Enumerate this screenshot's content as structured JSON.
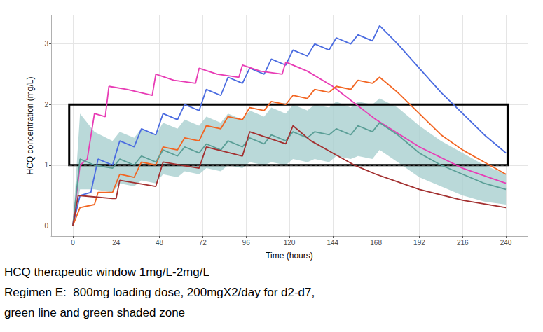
{
  "chart_data": {
    "type": "line",
    "x_label": "Time (hours)",
    "y_label": "HCQ concentration (mg/L)",
    "xlim": [
      -12,
      252
    ],
    "xticks": [
      0,
      24,
      48,
      72,
      96,
      120,
      144,
      168,
      192,
      216,
      240
    ],
    "ylim": [
      -0.17,
      3.47
    ],
    "yticks": [
      0,
      1,
      2,
      3
    ],
    "grid": true,
    "window": {
      "color": "#000000",
      "xlim": [
        -2,
        241
      ],
      "ylim": [
        1,
        2
      ]
    },
    "notes": [
      "HCQ therapeutic window 1mg/L-2mg/L",
      "Regimen E:  800mg loading dose, 200mgX2/day for d2-d7,",
      "green line and green shaded zone"
    ],
    "series": [
      {
        "type": "band",
        "color": "#a9cfcf",
        "x": [
          0,
          4,
          12,
          22,
          26,
          34,
          38,
          46,
          50,
          58,
          62,
          70,
          74,
          82,
          86,
          94,
          98,
          106,
          110,
          118,
          122,
          130,
          134,
          142,
          146,
          154,
          158,
          166,
          170,
          180,
          192,
          204,
          216,
          228,
          240
        ],
        "upper": [
          0,
          1.85,
          1.55,
          1.4,
          1.55,
          1.45,
          1.6,
          1.5,
          1.7,
          1.6,
          1.75,
          1.65,
          1.8,
          1.7,
          1.85,
          1.75,
          1.9,
          1.8,
          1.95,
          1.85,
          2.0,
          1.9,
          2.0,
          1.95,
          2.05,
          1.95,
          2.05,
          2.0,
          2.1,
          1.95,
          1.65,
          1.4,
          1.2,
          1.0,
          0.85
        ],
        "lower": [
          0,
          0.6,
          0.6,
          0.55,
          0.7,
          0.65,
          0.75,
          0.7,
          0.85,
          0.8,
          0.9,
          0.85,
          0.95,
          0.9,
          1.0,
          0.95,
          1.05,
          1.0,
          1.05,
          1.0,
          1.1,
          1.05,
          1.1,
          1.05,
          1.15,
          1.1,
          1.15,
          1.1,
          1.25,
          1.05,
          0.8,
          0.65,
          0.5,
          0.4,
          0.35
        ]
      },
      {
        "type": "line",
        "color": "#4a6be0",
        "x": [
          0,
          4,
          10,
          14,
          22,
          26,
          34,
          38,
          46,
          50,
          58,
          62,
          70,
          74,
          82,
          86,
          94,
          98,
          106,
          110,
          118,
          122,
          130,
          134,
          142,
          146,
          154,
          158,
          166,
          170,
          180,
          192,
          204,
          216,
          228,
          240
        ],
        "values": [
          0,
          0.5,
          0.55,
          1.1,
          1.0,
          1.4,
          1.3,
          1.6,
          1.5,
          1.85,
          1.75,
          2.0,
          1.9,
          2.25,
          2.15,
          2.45,
          2.35,
          2.6,
          2.5,
          2.75,
          2.65,
          2.9,
          2.8,
          3.0,
          2.9,
          3.1,
          3.0,
          3.15,
          3.05,
          3.3,
          3.0,
          2.6,
          2.2,
          1.85,
          1.5,
          1.2
        ]
      },
      {
        "type": "line",
        "color": "#e83cb5",
        "x": [
          0,
          4,
          8,
          12,
          18,
          20,
          30,
          44,
          46,
          56,
          68,
          70,
          80,
          92,
          94,
          104,
          116,
          118,
          130,
          144,
          168,
          192,
          216,
          240
        ],
        "values": [
          0,
          1.0,
          1.1,
          1.85,
          1.8,
          2.3,
          2.25,
          2.15,
          2.5,
          2.4,
          2.35,
          2.6,
          2.5,
          2.45,
          2.65,
          2.55,
          2.5,
          2.7,
          2.55,
          2.3,
          1.75,
          1.3,
          0.95,
          0.7
        ]
      },
      {
        "type": "line",
        "color": "#f26522",
        "x": [
          0,
          4,
          12,
          14,
          22,
          26,
          34,
          38,
          46,
          50,
          58,
          62,
          70,
          74,
          82,
          86,
          94,
          98,
          106,
          110,
          118,
          122,
          130,
          134,
          142,
          146,
          154,
          158,
          166,
          170,
          180,
          192,
          204,
          216,
          228,
          240
        ],
        "values": [
          0,
          0.3,
          0.35,
          0.55,
          0.55,
          0.85,
          0.8,
          1.05,
          1.0,
          1.3,
          1.25,
          1.45,
          1.4,
          1.65,
          1.6,
          1.8,
          1.75,
          1.95,
          1.9,
          2.05,
          2.0,
          2.15,
          2.1,
          2.25,
          2.2,
          2.3,
          2.25,
          2.4,
          2.35,
          2.45,
          2.2,
          1.85,
          1.5,
          1.25,
          1.05,
          0.85
        ]
      },
      {
        "type": "line",
        "color": "#5a9e96",
        "x": [
          0,
          4,
          12,
          22,
          26,
          34,
          38,
          46,
          50,
          58,
          62,
          70,
          74,
          82,
          86,
          94,
          98,
          106,
          110,
          118,
          122,
          130,
          134,
          142,
          146,
          154,
          158,
          166,
          170,
          180,
          192,
          204,
          216,
          228,
          240
        ],
        "values": [
          0,
          1.1,
          1.0,
          0.95,
          1.1,
          1.0,
          1.15,
          1.05,
          1.25,
          1.15,
          1.3,
          1.2,
          1.35,
          1.25,
          1.4,
          1.3,
          1.45,
          1.35,
          1.5,
          1.4,
          1.55,
          1.45,
          1.55,
          1.5,
          1.6,
          1.5,
          1.65,
          1.55,
          1.7,
          1.5,
          1.2,
          1.0,
          0.85,
          0.7,
          0.6
        ]
      },
      {
        "type": "line",
        "color": "#a33030",
        "x": [
          0,
          3,
          22,
          24,
          26,
          46,
          50,
          70,
          74,
          94,
          98,
          118,
          122,
          132,
          144,
          156,
          168,
          192,
          216,
          240
        ],
        "values": [
          0,
          0.5,
          0.45,
          0.45,
          0.75,
          0.65,
          1.05,
          0.95,
          1.3,
          1.15,
          1.55,
          1.35,
          1.65,
          1.4,
          1.2,
          1.0,
          0.85,
          0.6,
          0.42,
          0.3
        ]
      }
    ]
  }
}
